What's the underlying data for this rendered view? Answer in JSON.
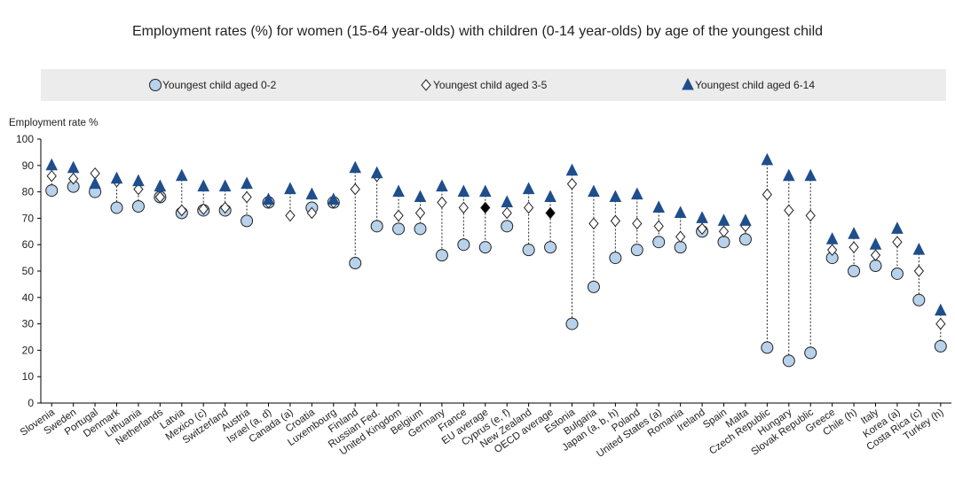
{
  "chart_data": {
    "type": "dot",
    "title": "Employment rates (%) for women (15-64 year-olds) with children (0-14 year-olds) by age of the youngest child",
    "y_label": "Employment rate %",
    "categories": [
      "Slovenia",
      "Sweden",
      "Portugal",
      "Denmark",
      "Lithuania",
      "Netherlands",
      "Latvia",
      "Mexico (c)",
      "Switzerland",
      "Austria",
      "Israel (a, d)",
      "Canada (a)",
      "Croatia",
      "Luxembourg",
      "Finland",
      "Russian Fed.",
      "United Kingdom",
      "Belgium",
      "Germany",
      "France",
      "EU average",
      "Cyprus (e, f)",
      "New Zealand",
      "OECD average",
      "Estonia",
      "Bulgaria",
      "Japan (a, b, h)",
      "Poland",
      "United States (a)",
      "Romania",
      "Ireland",
      "Spain",
      "Malta",
      "Czech Republic",
      "Hungary",
      "Slovak Republic",
      "Greece",
      "Chile (h)",
      "Italy",
      "Korea (a)",
      "Costa Rica (c)",
      "Turkey (h)"
    ],
    "series": [
      {
        "name": "Youngest child aged 0-2",
        "marker": "circle",
        "color": "#b8d2ec",
        "values": [
          80.5,
          82,
          80,
          74,
          74.5,
          78,
          72,
          73,
          73,
          69,
          76,
          null,
          74,
          76,
          53,
          67,
          66,
          66,
          56,
          60,
          59,
          67,
          58,
          59,
          30,
          44,
          55,
          58,
          61,
          59,
          65,
          61,
          62,
          21,
          16,
          19,
          55,
          50,
          52,
          49,
          39,
          21.5
        ]
      },
      {
        "name": "Youngest child aged 3-5",
        "marker": "diamond",
        "color": "#ffffff",
        "values": [
          86,
          85,
          87,
          84,
          81,
          78,
          73,
          73.5,
          74,
          78,
          76,
          71,
          72,
          76,
          81,
          86,
          71,
          72,
          76,
          74,
          74,
          72,
          74,
          72,
          83,
          68,
          69,
          68,
          67,
          63,
          66,
          65,
          67,
          79,
          73,
          71,
          58,
          59,
          56,
          61,
          50,
          30
        ]
      },
      {
        "name": "Youngest child aged 6-14",
        "marker": "triangle",
        "color": "#1f4e8c",
        "values": [
          90,
          89,
          83,
          85,
          84,
          82,
          86,
          82,
          82,
          83,
          77,
          81,
          79,
          77,
          89,
          87,
          80,
          78,
          82,
          80,
          80,
          76,
          81,
          78,
          88,
          80,
          78,
          79,
          74,
          72,
          70,
          69,
          69,
          92,
          86,
          86,
          62,
          64,
          60,
          66,
          58,
          35
        ]
      }
    ],
    "highlight_points": {
      "series": 1,
      "indices": [
        20,
        23
      ],
      "color": "#000000"
    },
    "ylim": [
      0,
      100
    ],
    "yticks": [
      0,
      10,
      20,
      30,
      40,
      50,
      60,
      70,
      80,
      90,
      100
    ],
    "grid": false
  }
}
